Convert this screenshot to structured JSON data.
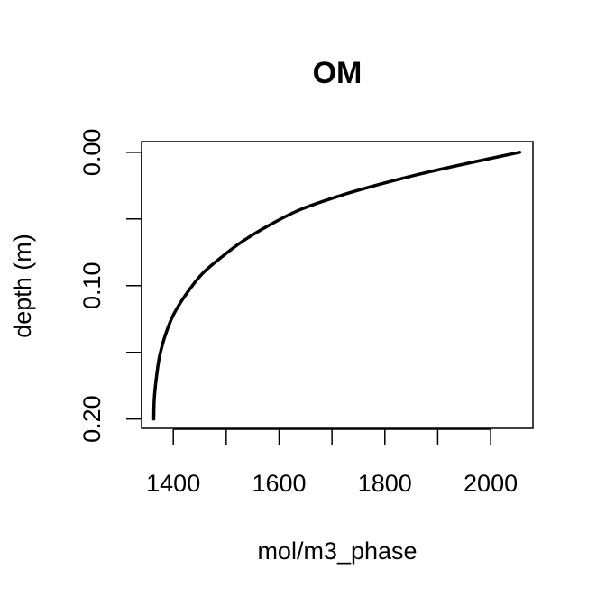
{
  "chart_data": {
    "type": "line",
    "title": "OM",
    "xlabel": "mol/m3_phase",
    "ylabel": "depth (m)",
    "xlim": [
      1340,
      2080
    ],
    "ylim": [
      0.207,
      -0.008
    ],
    "y_reversed": true,
    "x_ticks": [
      1400,
      1500,
      1600,
      1700,
      1800,
      1900,
      2000
    ],
    "x_tick_labels": [
      "1400",
      "",
      "1600",
      "",
      "1800",
      "",
      "2000"
    ],
    "y_ticks": [
      0.0,
      0.05,
      0.1,
      0.15,
      0.2
    ],
    "y_tick_labels": [
      "0.00",
      "",
      "0.10",
      "",
      "0.20"
    ],
    "grid": false,
    "series": [
      {
        "color": "#000000",
        "points": [
          {
            "x": 2055,
            "y": 0.0
          },
          {
            "x": 1995,
            "y": 0.005
          },
          {
            "x": 1880,
            "y": 0.015
          },
          {
            "x": 1800,
            "y": 0.023
          },
          {
            "x": 1720,
            "y": 0.032
          },
          {
            "x": 1640,
            "y": 0.043
          },
          {
            "x": 1580,
            "y": 0.055
          },
          {
            "x": 1530,
            "y": 0.067
          },
          {
            "x": 1490,
            "y": 0.079
          },
          {
            "x": 1455,
            "y": 0.091
          },
          {
            "x": 1425,
            "y": 0.106
          },
          {
            "x": 1400,
            "y": 0.122
          },
          {
            "x": 1385,
            "y": 0.137
          },
          {
            "x": 1374,
            "y": 0.153
          },
          {
            "x": 1368,
            "y": 0.169
          },
          {
            "x": 1364,
            "y": 0.185
          },
          {
            "x": 1363,
            "y": 0.2
          }
        ]
      }
    ]
  }
}
